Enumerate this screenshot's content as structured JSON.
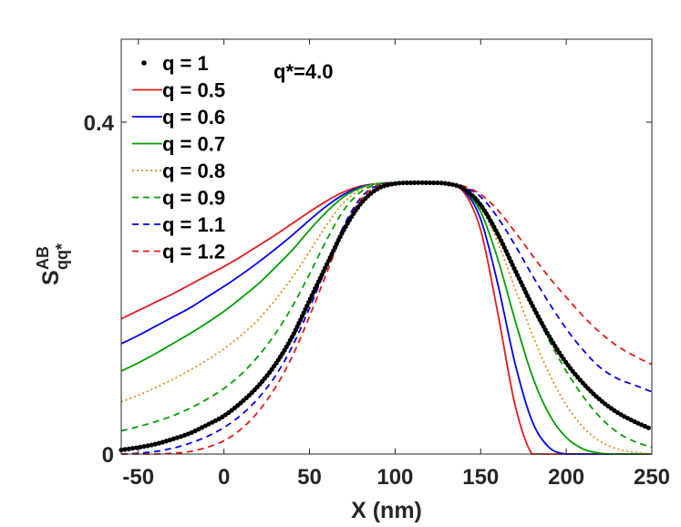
{
  "chart_data": {
    "type": "line",
    "title": "",
    "xlabel": "X (nm)",
    "ylabel_main": "S",
    "ylabel_sup": "AB",
    "ylabel_sub": "qq*",
    "xlim": [
      -60,
      250
    ],
    "ylim": [
      0,
      0.5
    ],
    "xticks": [
      -50,
      0,
      50,
      100,
      150,
      200,
      250
    ],
    "xtick_labels": [
      "-50",
      "0",
      "50",
      "100",
      "150",
      "200",
      "250"
    ],
    "yticks": [
      0,
      0.4
    ],
    "ytick_labels": [
      "0",
      "0.4"
    ],
    "annotation": "q*=4.0",
    "legend_position": "top-left",
    "x": [
      -60,
      -50,
      -40,
      -30,
      -20,
      -10,
      0,
      10,
      20,
      30,
      40,
      50,
      60,
      70,
      80,
      90,
      100,
      110,
      120,
      130,
      140,
      150,
      160,
      170,
      180,
      190,
      200,
      210,
      220,
      230,
      240,
      250
    ],
    "series": [
      {
        "name": "q = 1",
        "legend": "q = 1",
        "color": "#000000",
        "style": "dots",
        "values": [
          0.005,
          0.008,
          0.012,
          0.018,
          0.025,
          0.035,
          0.046,
          0.062,
          0.082,
          0.108,
          0.142,
          0.185,
          0.228,
          0.27,
          0.302,
          0.32,
          0.326,
          0.327,
          0.327,
          0.326,
          0.32,
          0.3,
          0.265,
          0.222,
          0.18,
          0.142,
          0.11,
          0.085,
          0.065,
          0.05,
          0.039,
          0.03
        ]
      },
      {
        "name": "q = 0.5",
        "legend": "q = 0.5",
        "color": "#e41a1c",
        "style": "solid",
        "values": [
          0.163,
          0.173,
          0.183,
          0.193,
          0.204,
          0.215,
          0.226,
          0.238,
          0.251,
          0.264,
          0.278,
          0.292,
          0.305,
          0.316,
          0.323,
          0.326,
          0.327,
          0.327,
          0.327,
          0.326,
          0.316,
          0.27,
          0.17,
          0.06,
          0.0,
          0.0,
          0.0,
          0.0,
          0.0,
          0.0,
          0.0,
          0.0
        ]
      },
      {
        "name": "q = 0.6",
        "legend": "q = 0.6",
        "color": "#0000ee",
        "style": "solid",
        "values": [
          0.133,
          0.143,
          0.154,
          0.165,
          0.176,
          0.189,
          0.202,
          0.216,
          0.231,
          0.247,
          0.264,
          0.282,
          0.299,
          0.313,
          0.322,
          0.326,
          0.327,
          0.327,
          0.327,
          0.326,
          0.318,
          0.283,
          0.205,
          0.11,
          0.04,
          0.008,
          0.0,
          0.0,
          0.0,
          0.0,
          0.0,
          0.0
        ]
      },
      {
        "name": "q = 0.7",
        "legend": "q = 0.7",
        "color": "#00a000",
        "style": "solid",
        "values": [
          0.1,
          0.11,
          0.121,
          0.133,
          0.145,
          0.158,
          0.172,
          0.188,
          0.205,
          0.225,
          0.246,
          0.27,
          0.292,
          0.31,
          0.321,
          0.326,
          0.327,
          0.327,
          0.327,
          0.326,
          0.319,
          0.292,
          0.235,
          0.162,
          0.095,
          0.048,
          0.02,
          0.006,
          0.001,
          0.0,
          0.0,
          0.0
        ]
      },
      {
        "name": "q = 0.8",
        "legend": "q = 0.8",
        "color": "#e88a1a",
        "style": "dotted",
        "values": [
          0.063,
          0.071,
          0.08,
          0.09,
          0.101,
          0.113,
          0.127,
          0.143,
          0.162,
          0.186,
          0.213,
          0.244,
          0.276,
          0.303,
          0.319,
          0.326,
          0.327,
          0.327,
          0.327,
          0.326,
          0.32,
          0.298,
          0.255,
          0.2,
          0.145,
          0.097,
          0.059,
          0.032,
          0.015,
          0.006,
          0.002,
          0.0
        ]
      },
      {
        "name": "q = 0.9",
        "legend": "q = 0.9",
        "color": "#00a000",
        "style": "dashed",
        "values": [
          0.028,
          0.033,
          0.039,
          0.046,
          0.055,
          0.066,
          0.079,
          0.096,
          0.118,
          0.145,
          0.178,
          0.217,
          0.258,
          0.294,
          0.316,
          0.325,
          0.327,
          0.327,
          0.327,
          0.326,
          0.321,
          0.303,
          0.268,
          0.224,
          0.179,
          0.137,
          0.1,
          0.069,
          0.044,
          0.026,
          0.015,
          0.008
        ]
      },
      {
        "name": "q = 1.1",
        "legend": "q = 1.1",
        "color": "#0000ee",
        "style": "dashed",
        "values": [
          0.0,
          0.001,
          0.003,
          0.007,
          0.013,
          0.021,
          0.032,
          0.047,
          0.067,
          0.094,
          0.13,
          0.176,
          0.226,
          0.275,
          0.309,
          0.324,
          0.327,
          0.327,
          0.327,
          0.326,
          0.322,
          0.31,
          0.285,
          0.252,
          0.216,
          0.182,
          0.151,
          0.125,
          0.104,
          0.091,
          0.083,
          0.075
        ]
      },
      {
        "name": "q = 1.2",
        "legend": "q = 1.2",
        "color": "#e41a1c",
        "style": "dashed",
        "values": [
          0.0,
          0.0,
          0.0,
          0.001,
          0.003,
          0.008,
          0.016,
          0.03,
          0.051,
          0.08,
          0.118,
          0.166,
          0.218,
          0.27,
          0.307,
          0.323,
          0.327,
          0.327,
          0.327,
          0.326,
          0.323,
          0.313,
          0.294,
          0.268,
          0.24,
          0.213,
          0.189,
          0.166,
          0.146,
          0.13,
          0.118,
          0.108
        ]
      }
    ]
  }
}
